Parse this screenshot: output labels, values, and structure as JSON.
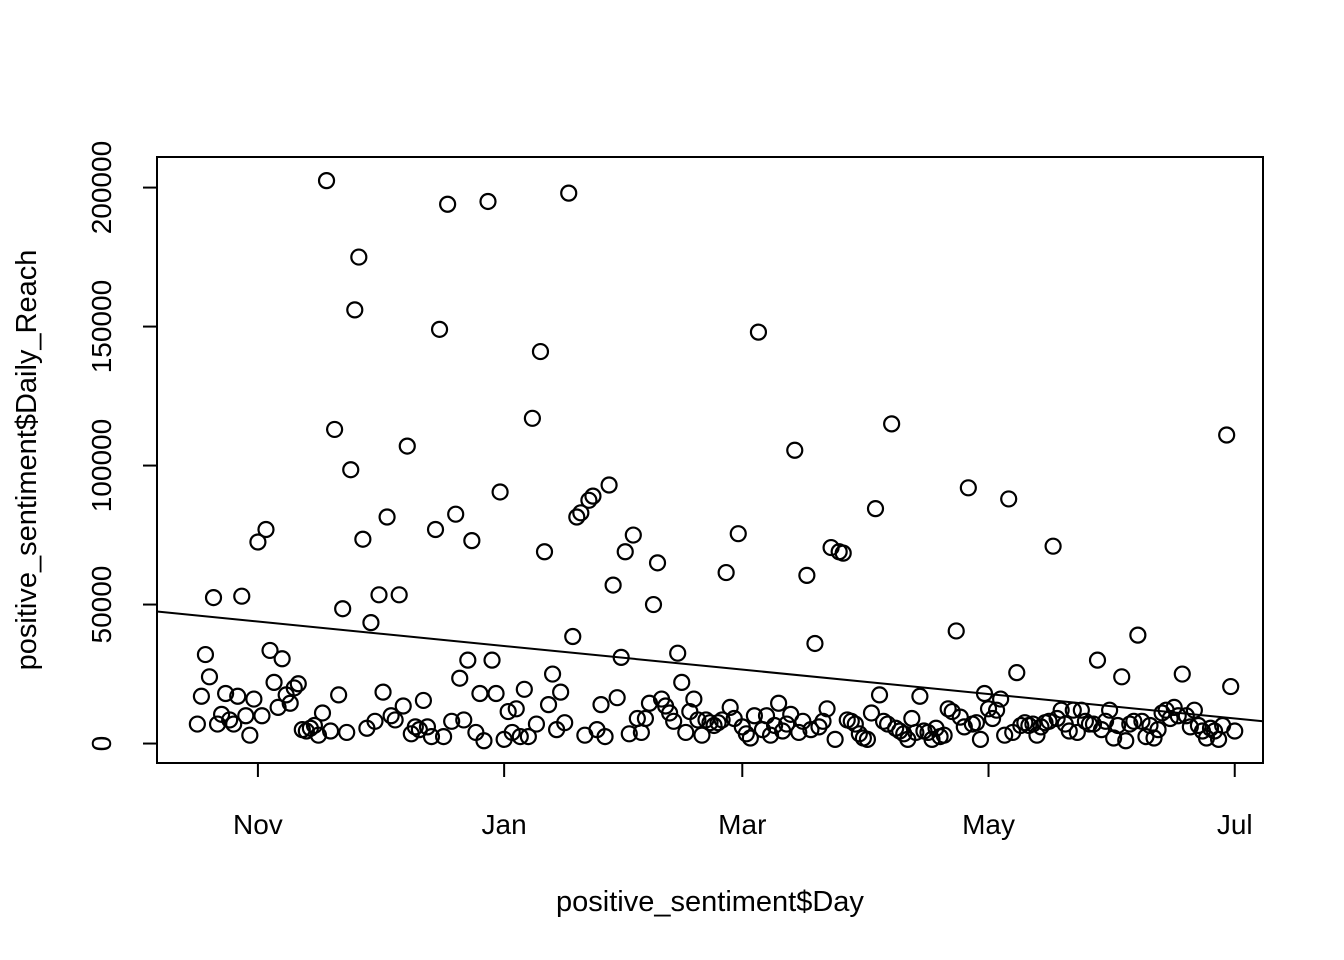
{
  "chart_data": {
    "type": "scatter",
    "title": "",
    "xlabel": "positive_sentiment$Day",
    "ylabel": "positive_sentiment$Daily_Reach",
    "x_is_date": true,
    "xlim": [
      "2022-10-07",
      "2023-07-08"
    ],
    "ylim": [
      -7000,
      211000
    ],
    "x_ticks": [
      {
        "date": "2022-11-01",
        "label": "Nov"
      },
      {
        "date": "2023-01-01",
        "label": "Jan"
      },
      {
        "date": "2023-03-01",
        "label": "Mar"
      },
      {
        "date": "2023-05-01",
        "label": "May"
      },
      {
        "date": "2023-07-01",
        "label": "Jul"
      }
    ],
    "y_ticks": [
      {
        "value": 0,
        "label": "0"
      },
      {
        "value": 50000,
        "label": "50000"
      },
      {
        "value": 100000,
        "label": "100000"
      },
      {
        "value": 150000,
        "label": "150000"
      },
      {
        "value": 200000,
        "label": "200000"
      }
    ],
    "grid": false,
    "legend": "none",
    "regression_line": {
      "x": [
        "2022-10-07",
        "2023-07-08"
      ],
      "y": [
        47500,
        8000
      ]
    },
    "points": [
      {
        "x": "2022-10-17",
        "y": 7000
      },
      {
        "x": "2022-10-18",
        "y": 17000
      },
      {
        "x": "2022-10-19",
        "y": 32000
      },
      {
        "x": "2022-10-20",
        "y": 24000
      },
      {
        "x": "2022-10-21",
        "y": 52500
      },
      {
        "x": "2022-10-22",
        "y": 7000
      },
      {
        "x": "2022-10-23",
        "y": 10500
      },
      {
        "x": "2022-10-24",
        "y": 18000
      },
      {
        "x": "2022-10-25",
        "y": 8500
      },
      {
        "x": "2022-10-26",
        "y": 7000
      },
      {
        "x": "2022-10-27",
        "y": 17000
      },
      {
        "x": "2022-10-28",
        "y": 53000
      },
      {
        "x": "2022-10-29",
        "y": 10000
      },
      {
        "x": "2022-10-30",
        "y": 3000
      },
      {
        "x": "2022-10-31",
        "y": 16000
      },
      {
        "x": "2022-11-01",
        "y": 72500
      },
      {
        "x": "2022-11-02",
        "y": 10000
      },
      {
        "x": "2022-11-03",
        "y": 77000
      },
      {
        "x": "2022-11-04",
        "y": 33500
      },
      {
        "x": "2022-11-05",
        "y": 22000
      },
      {
        "x": "2022-11-06",
        "y": 13000
      },
      {
        "x": "2022-11-07",
        "y": 30500
      },
      {
        "x": "2022-11-08",
        "y": 17500
      },
      {
        "x": "2022-11-09",
        "y": 14500
      },
      {
        "x": "2022-11-10",
        "y": 20000
      },
      {
        "x": "2022-11-11",
        "y": 21500
      },
      {
        "x": "2022-11-12",
        "y": 5000
      },
      {
        "x": "2022-11-13",
        "y": 4500
      },
      {
        "x": "2022-11-14",
        "y": 5500
      },
      {
        "x": "2022-11-15",
        "y": 6500
      },
      {
        "x": "2022-11-16",
        "y": 3000
      },
      {
        "x": "2022-11-17",
        "y": 11000
      },
      {
        "x": "2022-11-18",
        "y": 202500
      },
      {
        "x": "2022-11-19",
        "y": 4500
      },
      {
        "x": "2022-11-20",
        "y": 113000
      },
      {
        "x": "2022-11-21",
        "y": 17500
      },
      {
        "x": "2022-11-22",
        "y": 48500
      },
      {
        "x": "2022-11-23",
        "y": 4000
      },
      {
        "x": "2022-11-24",
        "y": 98500
      },
      {
        "x": "2022-11-25",
        "y": 156000
      },
      {
        "x": "2022-11-26",
        "y": 175000
      },
      {
        "x": "2022-11-27",
        "y": 73500
      },
      {
        "x": "2022-11-28",
        "y": 5500
      },
      {
        "x": "2022-11-29",
        "y": 43500
      },
      {
        "x": "2022-11-30",
        "y": 8000
      },
      {
        "x": "2022-12-01",
        "y": 53500
      },
      {
        "x": "2022-12-02",
        "y": 18500
      },
      {
        "x": "2022-12-03",
        "y": 81500
      },
      {
        "x": "2022-12-04",
        "y": 10000
      },
      {
        "x": "2022-12-05",
        "y": 8500
      },
      {
        "x": "2022-12-06",
        "y": 53500
      },
      {
        "x": "2022-12-07",
        "y": 13500
      },
      {
        "x": "2022-12-08",
        "y": 107000
      },
      {
        "x": "2022-12-09",
        "y": 3500
      },
      {
        "x": "2022-12-10",
        "y": 6000
      },
      {
        "x": "2022-12-11",
        "y": 5000
      },
      {
        "x": "2022-12-12",
        "y": 15500
      },
      {
        "x": "2022-12-13",
        "y": 6000
      },
      {
        "x": "2022-12-14",
        "y": 2500
      },
      {
        "x": "2022-12-15",
        "y": 77000
      },
      {
        "x": "2022-12-16",
        "y": 149000
      },
      {
        "x": "2022-12-17",
        "y": 2500
      },
      {
        "x": "2022-12-18",
        "y": 194000
      },
      {
        "x": "2022-12-19",
        "y": 8000
      },
      {
        "x": "2022-12-20",
        "y": 82500
      },
      {
        "x": "2022-12-21",
        "y": 23500
      },
      {
        "x": "2022-12-22",
        "y": 8500
      },
      {
        "x": "2022-12-23",
        "y": 30000
      },
      {
        "x": "2022-12-24",
        "y": 73000
      },
      {
        "x": "2022-12-25",
        "y": 4000
      },
      {
        "x": "2022-12-26",
        "y": 18000
      },
      {
        "x": "2022-12-27",
        "y": 1000
      },
      {
        "x": "2022-12-28",
        "y": 195000
      },
      {
        "x": "2022-12-29",
        "y": 30000
      },
      {
        "x": "2022-12-30",
        "y": 18000
      },
      {
        "x": "2022-12-31",
        "y": 90500
      },
      {
        "x": "2023-01-01",
        "y": 1500
      },
      {
        "x": "2023-01-02",
        "y": 11500
      },
      {
        "x": "2023-01-03",
        "y": 4000
      },
      {
        "x": "2023-01-04",
        "y": 12500
      },
      {
        "x": "2023-01-05",
        "y": 2500
      },
      {
        "x": "2023-01-06",
        "y": 19500
      },
      {
        "x": "2023-01-07",
        "y": 2500
      },
      {
        "x": "2023-01-08",
        "y": 117000
      },
      {
        "x": "2023-01-09",
        "y": 7000
      },
      {
        "x": "2023-01-10",
        "y": 141000
      },
      {
        "x": "2023-01-11",
        "y": 69000
      },
      {
        "x": "2023-01-12",
        "y": 14000
      },
      {
        "x": "2023-01-13",
        "y": 25000
      },
      {
        "x": "2023-01-14",
        "y": 5000
      },
      {
        "x": "2023-01-15",
        "y": 18500
      },
      {
        "x": "2023-01-16",
        "y": 7500
      },
      {
        "x": "2023-01-17",
        "y": 198000
      },
      {
        "x": "2023-01-18",
        "y": 38500
      },
      {
        "x": "2023-01-19",
        "y": 81500
      },
      {
        "x": "2023-01-20",
        "y": 83000
      },
      {
        "x": "2023-01-21",
        "y": 3000
      },
      {
        "x": "2023-01-22",
        "y": 87500
      },
      {
        "x": "2023-01-23",
        "y": 89000
      },
      {
        "x": "2023-01-24",
        "y": 5000
      },
      {
        "x": "2023-01-25",
        "y": 14000
      },
      {
        "x": "2023-01-26",
        "y": 2500
      },
      {
        "x": "2023-01-27",
        "y": 93000
      },
      {
        "x": "2023-01-28",
        "y": 57000
      },
      {
        "x": "2023-01-29",
        "y": 16500
      },
      {
        "x": "2023-01-30",
        "y": 31000
      },
      {
        "x": "2023-01-31",
        "y": 69000
      },
      {
        "x": "2023-02-01",
        "y": 3500
      },
      {
        "x": "2023-02-02",
        "y": 75000
      },
      {
        "x": "2023-02-03",
        "y": 9000
      },
      {
        "x": "2023-02-04",
        "y": 4000
      },
      {
        "x": "2023-02-05",
        "y": 9000
      },
      {
        "x": "2023-02-06",
        "y": 14500
      },
      {
        "x": "2023-02-07",
        "y": 50000
      },
      {
        "x": "2023-02-08",
        "y": 65000
      },
      {
        "x": "2023-02-09",
        "y": 16000
      },
      {
        "x": "2023-02-10",
        "y": 13500
      },
      {
        "x": "2023-02-11",
        "y": 11000
      },
      {
        "x": "2023-02-12",
        "y": 8000
      },
      {
        "x": "2023-02-13",
        "y": 32500
      },
      {
        "x": "2023-02-14",
        "y": 22000
      },
      {
        "x": "2023-02-15",
        "y": 4000
      },
      {
        "x": "2023-02-16",
        "y": 11500
      },
      {
        "x": "2023-02-17",
        "y": 16000
      },
      {
        "x": "2023-02-18",
        "y": 8500
      },
      {
        "x": "2023-02-19",
        "y": 3000
      },
      {
        "x": "2023-02-20",
        "y": 8500
      },
      {
        "x": "2023-02-21",
        "y": 7500
      },
      {
        "x": "2023-02-22",
        "y": 6500
      },
      {
        "x": "2023-02-23",
        "y": 7500
      },
      {
        "x": "2023-02-24",
        "y": 8500
      },
      {
        "x": "2023-02-25",
        "y": 61500
      },
      {
        "x": "2023-02-26",
        "y": 13000
      },
      {
        "x": "2023-02-27",
        "y": 9000
      },
      {
        "x": "2023-02-28",
        "y": 75500
      },
      {
        "x": "2023-03-01",
        "y": 6000
      },
      {
        "x": "2023-03-02",
        "y": 3500
      },
      {
        "x": "2023-03-03",
        "y": 2000
      },
      {
        "x": "2023-03-04",
        "y": 10000
      },
      {
        "x": "2023-03-05",
        "y": 148000
      },
      {
        "x": "2023-03-06",
        "y": 5000
      },
      {
        "x": "2023-03-07",
        "y": 10000
      },
      {
        "x": "2023-03-08",
        "y": 3000
      },
      {
        "x": "2023-03-09",
        "y": 6500
      },
      {
        "x": "2023-03-10",
        "y": 14500
      },
      {
        "x": "2023-03-11",
        "y": 4500
      },
      {
        "x": "2023-03-12",
        "y": 7000
      },
      {
        "x": "2023-03-13",
        "y": 10500
      },
      {
        "x": "2023-03-14",
        "y": 105500
      },
      {
        "x": "2023-03-15",
        "y": 4000
      },
      {
        "x": "2023-03-16",
        "y": 8000
      },
      {
        "x": "2023-03-17",
        "y": 60500
      },
      {
        "x": "2023-03-18",
        "y": 5000
      },
      {
        "x": "2023-03-19",
        "y": 36000
      },
      {
        "x": "2023-03-20",
        "y": 6000
      },
      {
        "x": "2023-03-21",
        "y": 8000
      },
      {
        "x": "2023-03-22",
        "y": 12500
      },
      {
        "x": "2023-03-23",
        "y": 70500
      },
      {
        "x": "2023-03-24",
        "y": 1500
      },
      {
        "x": "2023-03-25",
        "y": 69000
      },
      {
        "x": "2023-03-26",
        "y": 68500
      },
      {
        "x": "2023-03-27",
        "y": 8500
      },
      {
        "x": "2023-03-28",
        "y": 8000
      },
      {
        "x": "2023-03-29",
        "y": 7000
      },
      {
        "x": "2023-03-30",
        "y": 3500
      },
      {
        "x": "2023-03-31",
        "y": 2000
      },
      {
        "x": "2023-04-01",
        "y": 1500
      },
      {
        "x": "2023-04-02",
        "y": 11000
      },
      {
        "x": "2023-04-03",
        "y": 84500
      },
      {
        "x": "2023-04-04",
        "y": 17500
      },
      {
        "x": "2023-04-05",
        "y": 8000
      },
      {
        "x": "2023-04-06",
        "y": 7000
      },
      {
        "x": "2023-04-07",
        "y": 115000
      },
      {
        "x": "2023-04-08",
        "y": 5500
      },
      {
        "x": "2023-04-09",
        "y": 4500
      },
      {
        "x": "2023-04-10",
        "y": 3500
      },
      {
        "x": "2023-04-11",
        "y": 1500
      },
      {
        "x": "2023-04-12",
        "y": 9000
      },
      {
        "x": "2023-04-13",
        "y": 4000
      },
      {
        "x": "2023-04-14",
        "y": 17000
      },
      {
        "x": "2023-04-15",
        "y": 4500
      },
      {
        "x": "2023-04-16",
        "y": 4000
      },
      {
        "x": "2023-04-17",
        "y": 1500
      },
      {
        "x": "2023-04-18",
        "y": 5500
      },
      {
        "x": "2023-04-19",
        "y": 2500
      },
      {
        "x": "2023-04-20",
        "y": 3000
      },
      {
        "x": "2023-04-21",
        "y": 12500
      },
      {
        "x": "2023-04-22",
        "y": 11500
      },
      {
        "x": "2023-04-23",
        "y": 40500
      },
      {
        "x": "2023-04-24",
        "y": 9500
      },
      {
        "x": "2023-04-25",
        "y": 6000
      },
      {
        "x": "2023-04-26",
        "y": 92000
      },
      {
        "x": "2023-04-27",
        "y": 7000
      },
      {
        "x": "2023-04-28",
        "y": 7500
      },
      {
        "x": "2023-04-29",
        "y": 1500
      },
      {
        "x": "2023-04-30",
        "y": 18000
      },
      {
        "x": "2023-05-01",
        "y": 12500
      },
      {
        "x": "2023-05-02",
        "y": 9000
      },
      {
        "x": "2023-05-03",
        "y": 12000
      },
      {
        "x": "2023-05-04",
        "y": 16000
      },
      {
        "x": "2023-05-05",
        "y": 3000
      },
      {
        "x": "2023-05-06",
        "y": 88000
      },
      {
        "x": "2023-05-07",
        "y": 4000
      },
      {
        "x": "2023-05-08",
        "y": 25500
      },
      {
        "x": "2023-05-09",
        "y": 6500
      },
      {
        "x": "2023-05-10",
        "y": 7500
      },
      {
        "x": "2023-05-11",
        "y": 6500
      },
      {
        "x": "2023-05-12",
        "y": 7000
      },
      {
        "x": "2023-05-13",
        "y": 3000
      },
      {
        "x": "2023-05-14",
        "y": 6000
      },
      {
        "x": "2023-05-15",
        "y": 7500
      },
      {
        "x": "2023-05-16",
        "y": 8000
      },
      {
        "x": "2023-05-17",
        "y": 71000
      },
      {
        "x": "2023-05-18",
        "y": 9000
      },
      {
        "x": "2023-05-19",
        "y": 12000
      },
      {
        "x": "2023-05-20",
        "y": 7000
      },
      {
        "x": "2023-05-21",
        "y": 4500
      },
      {
        "x": "2023-05-22",
        "y": 12000
      },
      {
        "x": "2023-05-23",
        "y": 4000
      },
      {
        "x": "2023-05-24",
        "y": 12000
      },
      {
        "x": "2023-05-25",
        "y": 8000
      },
      {
        "x": "2023-05-26",
        "y": 7000
      },
      {
        "x": "2023-05-27",
        "y": 7000
      },
      {
        "x": "2023-05-28",
        "y": 30000
      },
      {
        "x": "2023-05-29",
        "y": 5000
      },
      {
        "x": "2023-05-30",
        "y": 8000
      },
      {
        "x": "2023-05-31",
        "y": 12000
      },
      {
        "x": "2023-06-01",
        "y": 2000
      },
      {
        "x": "2023-06-02",
        "y": 6500
      },
      {
        "x": "2023-06-03",
        "y": 24000
      },
      {
        "x": "2023-06-04",
        "y": 1000
      },
      {
        "x": "2023-06-05",
        "y": 7000
      },
      {
        "x": "2023-06-06",
        "y": 8000
      },
      {
        "x": "2023-06-07",
        "y": 39000
      },
      {
        "x": "2023-06-08",
        "y": 8000
      },
      {
        "x": "2023-06-09",
        "y": 2500
      },
      {
        "x": "2023-06-10",
        "y": 6500
      },
      {
        "x": "2023-06-11",
        "y": 2000
      },
      {
        "x": "2023-06-12",
        "y": 5000
      },
      {
        "x": "2023-06-13",
        "y": 11000
      },
      {
        "x": "2023-06-14",
        "y": 12000
      },
      {
        "x": "2023-06-15",
        "y": 9000
      },
      {
        "x": "2023-06-16",
        "y": 13000
      },
      {
        "x": "2023-06-17",
        "y": 10000
      },
      {
        "x": "2023-06-18",
        "y": 25000
      },
      {
        "x": "2023-06-19",
        "y": 10000
      },
      {
        "x": "2023-06-20",
        "y": 6000
      },
      {
        "x": "2023-06-21",
        "y": 12000
      },
      {
        "x": "2023-06-22",
        "y": 6500
      },
      {
        "x": "2023-06-23",
        "y": 4500
      },
      {
        "x": "2023-06-24",
        "y": 2000
      },
      {
        "x": "2023-06-25",
        "y": 5500
      },
      {
        "x": "2023-06-26",
        "y": 4500
      },
      {
        "x": "2023-06-27",
        "y": 1500
      },
      {
        "x": "2023-06-28",
        "y": 6500
      },
      {
        "x": "2023-06-29",
        "y": 111000
      },
      {
        "x": "2023-06-30",
        "y": 20500
      },
      {
        "x": "2023-07-01",
        "y": 4500
      }
    ]
  }
}
